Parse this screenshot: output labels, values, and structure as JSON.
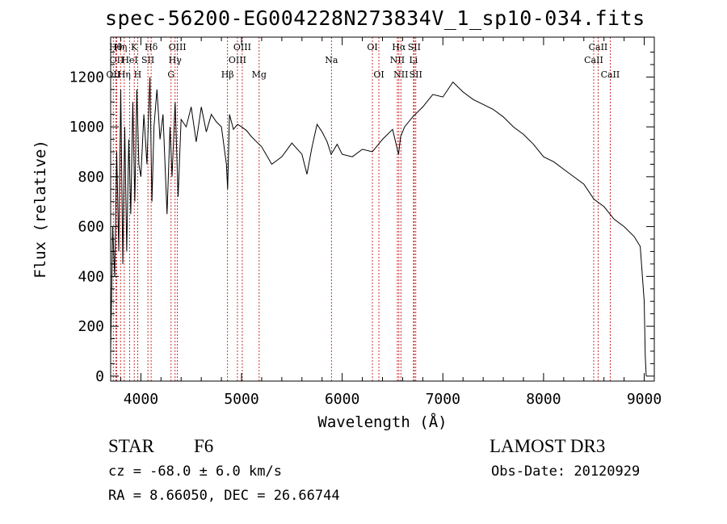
{
  "chart_data": {
    "type": "line",
    "title": "spec-56200-EG004228N273834V_1_sp10-034.fits",
    "xlabel": "Wavelength (Å)",
    "ylabel": "Flux (relative)",
    "xlim": [
      3700,
      9100
    ],
    "ylim": [
      -20,
      1360
    ],
    "xticks": [
      4000,
      5000,
      6000,
      7000,
      8000,
      9000
    ],
    "yticks": [
      0,
      200,
      400,
      600,
      800,
      1000,
      1200
    ],
    "xtick_labels": [
      "4000",
      "5000",
      "6000",
      "7000",
      "8000",
      "9000"
    ],
    "ytick_labels": [
      "0",
      "200",
      "400",
      "600",
      "800",
      "1000",
      "1200"
    ],
    "series": [
      {
        "name": "spectrum",
        "x": [
          3700,
          3720,
          3740,
          3760,
          3780,
          3800,
          3820,
          3840,
          3860,
          3880,
          3900,
          3920,
          3940,
          3960,
          3980,
          4000,
          4030,
          4060,
          4090,
          4110,
          4130,
          4160,
          4190,
          4220,
          4260,
          4290,
          4310,
          4340,
          4370,
          4400,
          4450,
          4500,
          4550,
          4600,
          4650,
          4700,
          4750,
          4800,
          4850,
          4862,
          4880,
          4920,
          4960,
          5000,
          5050,
          5100,
          5150,
          5200,
          5300,
          5400,
          5500,
          5600,
          5650,
          5700,
          5750,
          5800,
          5850,
          5890,
          5950,
          6000,
          6100,
          6200,
          6300,
          6400,
          6500,
          6560,
          6580,
          6620,
          6700,
          6800,
          6900,
          7000,
          7100,
          7200,
          7300,
          7400,
          7500,
          7600,
          7700,
          7800,
          7900,
          8000,
          8100,
          8200,
          8300,
          8400,
          8500,
          8600,
          8700,
          8800,
          8900,
          8960,
          9000,
          9010,
          9020
        ],
        "values": [
          100,
          600,
          400,
          900,
          500,
          1150,
          450,
          1000,
          500,
          950,
          650,
          1100,
          700,
          1150,
          850,
          800,
          1050,
          850,
          1200,
          700,
          1000,
          1150,
          950,
          1050,
          650,
          1000,
          800,
          1100,
          720,
          1030,
          1000,
          1080,
          940,
          1080,
          980,
          1050,
          1020,
          1000,
          850,
          750,
          1050,
          990,
          1010,
          1000,
          985,
          960,
          940,
          920,
          850,
          880,
          935,
          890,
          810,
          920,
          1010,
          980,
          940,
          890,
          930,
          890,
          880,
          910,
          900,
          950,
          990,
          890,
          960,
          1000,
          1040,
          1080,
          1130,
          1120,
          1180,
          1140,
          1110,
          1090,
          1070,
          1040,
          1000,
          970,
          930,
          880,
          860,
          830,
          800,
          770,
          710,
          680,
          630,
          600,
          560,
          520,
          300,
          80,
          0
        ]
      }
    ],
    "line_labels": [
      {
        "wavelength": 3726,
        "label": "OII",
        "row": 3
      },
      {
        "wavelength": 3750,
        "label": "Hθ",
        "row": 1
      },
      {
        "wavelength": 3760,
        "label": "OII",
        "row": 2
      },
      {
        "wavelength": 3798,
        "label": "Hη",
        "row": 1
      },
      {
        "wavelength": 3835,
        "label": "Hη",
        "row": 3
      },
      {
        "wavelength": 3889,
        "label": "HeI",
        "row": 2
      },
      {
        "wavelength": 3934,
        "label": "K",
        "row": 1
      },
      {
        "wavelength": 3968,
        "label": "H",
        "row": 3
      },
      {
        "wavelength": 4070,
        "label": "SII",
        "row": 2
      },
      {
        "wavelength": 4102,
        "label": "Hδ",
        "row": 1
      },
      {
        "wavelength": 4300,
        "label": "G",
        "row": 3
      },
      {
        "wavelength": 4340,
        "label": "Hγ",
        "row": 2
      },
      {
        "wavelength": 4363,
        "label": "OIII",
        "row": 1
      },
      {
        "wavelength": 4861,
        "label": "Hβ",
        "row": 3
      },
      {
        "wavelength": 4959,
        "label": "OIII",
        "row": 2
      },
      {
        "wavelength": 5007,
        "label": "OIII",
        "row": 1
      },
      {
        "wavelength": 5175,
        "label": "Mg",
        "row": 3
      },
      {
        "wavelength": 5893,
        "label": "Na",
        "row": 2
      },
      {
        "wavelength": 6300,
        "label": "OI",
        "row": 1
      },
      {
        "wavelength": 6364,
        "label": "OI",
        "row": 3
      },
      {
        "wavelength": 6548,
        "label": "NII",
        "row": 2
      },
      {
        "wavelength": 6563,
        "label": "Hα",
        "row": 1
      },
      {
        "wavelength": 6583,
        "label": "NII",
        "row": 3
      },
      {
        "wavelength": 6708,
        "label": "Li",
        "row": 2
      },
      {
        "wavelength": 6716,
        "label": "SII",
        "row": 1
      },
      {
        "wavelength": 6731,
        "label": "SII",
        "row": 3
      },
      {
        "wavelength": 8498,
        "label": "CaII",
        "row": 2
      },
      {
        "wavelength": 8542,
        "label": "CaII",
        "row": 1
      },
      {
        "wavelength": 8662,
        "label": "CaII",
        "row": 3
      }
    ]
  },
  "info": {
    "object_class": "STAR",
    "subclass": "F6",
    "survey": "LAMOST DR3",
    "redshift_text": "cz = -68.0 ± 6.0 km/s",
    "obs_date": "Obs-Date: 20120929",
    "coords": "RA =   8.66050, DEC =  26.66744"
  }
}
